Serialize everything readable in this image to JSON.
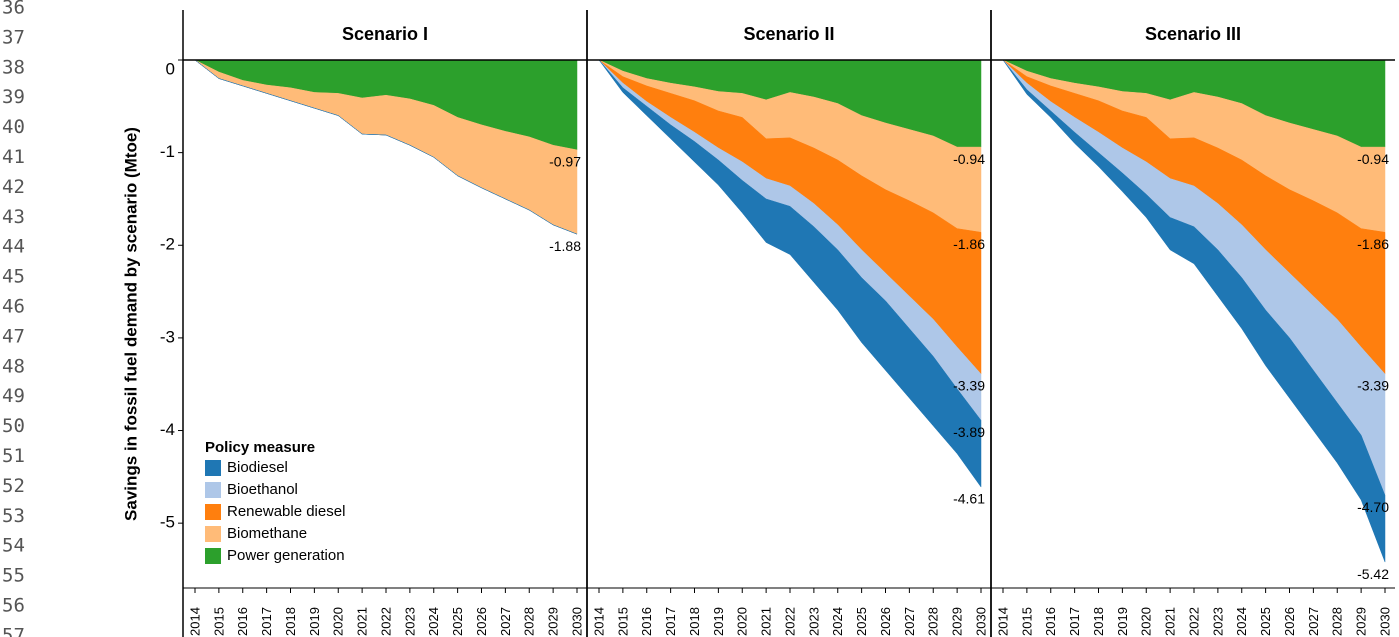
{
  "gutter": [
    36,
    37,
    38,
    39,
    40,
    41,
    42,
    43,
    44,
    45,
    46,
    47,
    48,
    49,
    50,
    51,
    52,
    53,
    54,
    55,
    56,
    57
  ],
  "chart_data": [
    {
      "type": "area",
      "title": "Scenario I",
      "ylabel": "Savings in fossil fuel demand by scenario (Mtoe)",
      "legend_title": "Policy measure",
      "legend": "lower left",
      "ylim": [
        -5.7,
        0
      ],
      "yticks": [
        0,
        -1,
        -2,
        -3,
        -4,
        -5
      ],
      "categories": [
        "2014",
        "2015",
        "2016",
        "2017",
        "2018",
        "2019",
        "2020",
        "2021",
        "2022",
        "2023",
        "2024",
        "2025",
        "2026",
        "2027",
        "2028",
        "2029",
        "2030"
      ],
      "series": [
        {
          "name": "Power generation",
          "color": "#2ca02c",
          "values": [
            0,
            -0.13,
            -0.22,
            -0.27,
            -0.3,
            -0.35,
            -0.36,
            -0.41,
            -0.38,
            -0.42,
            -0.49,
            -0.62,
            -0.7,
            -0.77,
            -0.83,
            -0.92,
            -0.97
          ]
        },
        {
          "name": "Biomethane",
          "color": "#ffbb78",
          "values": [
            0,
            -0.07,
            -0.06,
            -0.09,
            -0.14,
            -0.17,
            -0.24,
            -0.39,
            -0.43,
            -0.5,
            -0.56,
            -0.63,
            -0.68,
            -0.73,
            -0.79,
            -0.86,
            -0.91
          ]
        },
        {
          "name": "Renewable diesel",
          "color": "#ff7f0e",
          "values": [
            0,
            0,
            0,
            0,
            0,
            0,
            0,
            0,
            0,
            0,
            0,
            0,
            0,
            0,
            0,
            0,
            0
          ]
        },
        {
          "name": "Bioethanol",
          "color": "#aec7e8",
          "values": [
            0,
            0,
            0,
            0,
            0,
            0,
            0,
            0,
            0,
            0,
            0,
            0,
            0,
            0,
            0,
            0,
            0
          ]
        },
        {
          "name": "Biodiesel",
          "color": "#1f77b4",
          "values": [
            0,
            0,
            0,
            0,
            0,
            0,
            0,
            0,
            0,
            0,
            0,
            0,
            0,
            0,
            0,
            0,
            0
          ]
        }
      ],
      "annotations": [
        {
          "text": "-0.97",
          "y": -0.97
        },
        {
          "text": "-1.88",
          "y": -1.88
        }
      ]
    },
    {
      "type": "area",
      "title": "Scenario II",
      "ylim": [
        -5.7,
        0
      ],
      "categories": [
        "2014",
        "2015",
        "2016",
        "2017",
        "2018",
        "2019",
        "2020",
        "2021",
        "2022",
        "2023",
        "2024",
        "2025",
        "2026",
        "2027",
        "2028",
        "2029",
        "2030"
      ],
      "series": [
        {
          "color": "#2ca02c",
          "values": [
            0,
            -0.12,
            -0.2,
            -0.25,
            -0.29,
            -0.34,
            -0.36,
            -0.43,
            -0.35,
            -0.4,
            -0.47,
            -0.6,
            -0.68,
            -0.75,
            -0.82,
            -0.94,
            -0.94
          ]
        },
        {
          "color": "#ffbb78",
          "values": [
            0,
            -0.06,
            -0.08,
            -0.11,
            -0.15,
            -0.21,
            -0.26,
            -0.42,
            -0.49,
            -0.55,
            -0.61,
            -0.65,
            -0.72,
            -0.77,
            -0.83,
            -0.88,
            -0.92
          ]
        },
        {
          "color": "#ff7f0e",
          "values": [
            0,
            -0.07,
            -0.17,
            -0.26,
            -0.34,
            -0.4,
            -0.48,
            -0.43,
            -0.52,
            -0.6,
            -0.7,
            -0.8,
            -0.9,
            -1.03,
            -1.15,
            -1.28,
            -1.53
          ]
        },
        {
          "color": "#aec7e8",
          "values": [
            0,
            -0.05,
            -0.05,
            -0.08,
            -0.1,
            -0.13,
            -0.2,
            -0.22,
            -0.22,
            -0.25,
            -0.27,
            -0.3,
            -0.3,
            -0.35,
            -0.4,
            -0.45,
            -0.5
          ]
        },
        {
          "color": "#1f77b4",
          "values": [
            0,
            -0.05,
            -0.1,
            -0.15,
            -0.22,
            -0.27,
            -0.35,
            -0.47,
            -0.52,
            -0.6,
            -0.65,
            -0.7,
            -0.75,
            -0.75,
            -0.75,
            -0.7,
            -0.72
          ]
        }
      ],
      "annotations": [
        {
          "text": "-0.94",
          "y": -0.94
        },
        {
          "text": "-1.86",
          "y": -1.86
        },
        {
          "text": "-3.39",
          "y": -3.39
        },
        {
          "text": "-3.89",
          "y": -3.89
        },
        {
          "text": "-4.61",
          "y": -4.61
        }
      ]
    },
    {
      "type": "area",
      "title": "Scenario III",
      "ylim": [
        -5.7,
        0
      ],
      "categories": [
        "2014",
        "2015",
        "2016",
        "2017",
        "2018",
        "2019",
        "2020",
        "2021",
        "2022",
        "2023",
        "2024",
        "2025",
        "2026",
        "2027",
        "2028",
        "2029",
        "2030"
      ],
      "series": [
        {
          "color": "#2ca02c",
          "values": [
            0,
            -0.12,
            -0.2,
            -0.25,
            -0.29,
            -0.34,
            -0.36,
            -0.43,
            -0.35,
            -0.4,
            -0.47,
            -0.6,
            -0.68,
            -0.75,
            -0.82,
            -0.94,
            -0.94
          ]
        },
        {
          "color": "#ffbb78",
          "values": [
            0,
            -0.06,
            -0.08,
            -0.11,
            -0.15,
            -0.21,
            -0.26,
            -0.42,
            -0.49,
            -0.55,
            -0.61,
            -0.65,
            -0.72,
            -0.77,
            -0.83,
            -0.88,
            -0.92
          ]
        },
        {
          "color": "#ff7f0e",
          "values": [
            0,
            -0.07,
            -0.17,
            -0.26,
            -0.34,
            -0.4,
            -0.48,
            -0.43,
            -0.52,
            -0.6,
            -0.7,
            -0.8,
            -0.9,
            -1.03,
            -1.15,
            -1.28,
            -1.53
          ]
        },
        {
          "color": "#aec7e8",
          "values": [
            0,
            -0.07,
            -0.1,
            -0.16,
            -0.22,
            -0.27,
            -0.35,
            -0.42,
            -0.44,
            -0.5,
            -0.57,
            -0.65,
            -0.7,
            -0.8,
            -0.9,
            -0.95,
            -1.31
          ]
        },
        {
          "color": "#1f77b4",
          "values": [
            0,
            -0.05,
            -0.07,
            -0.12,
            -0.15,
            -0.2,
            -0.25,
            -0.35,
            -0.4,
            -0.5,
            -0.55,
            -0.6,
            -0.65,
            -0.65,
            -0.65,
            -0.7,
            -0.72
          ]
        }
      ],
      "annotations": [
        {
          "text": "-0.94",
          "y": -0.94
        },
        {
          "text": "-1.86",
          "y": -1.86
        },
        {
          "text": "-3.39",
          "y": -3.39
        },
        {
          "text": "-4.70",
          "y": -4.7
        },
        {
          "text": "-5.42",
          "y": -5.42
        }
      ]
    }
  ]
}
